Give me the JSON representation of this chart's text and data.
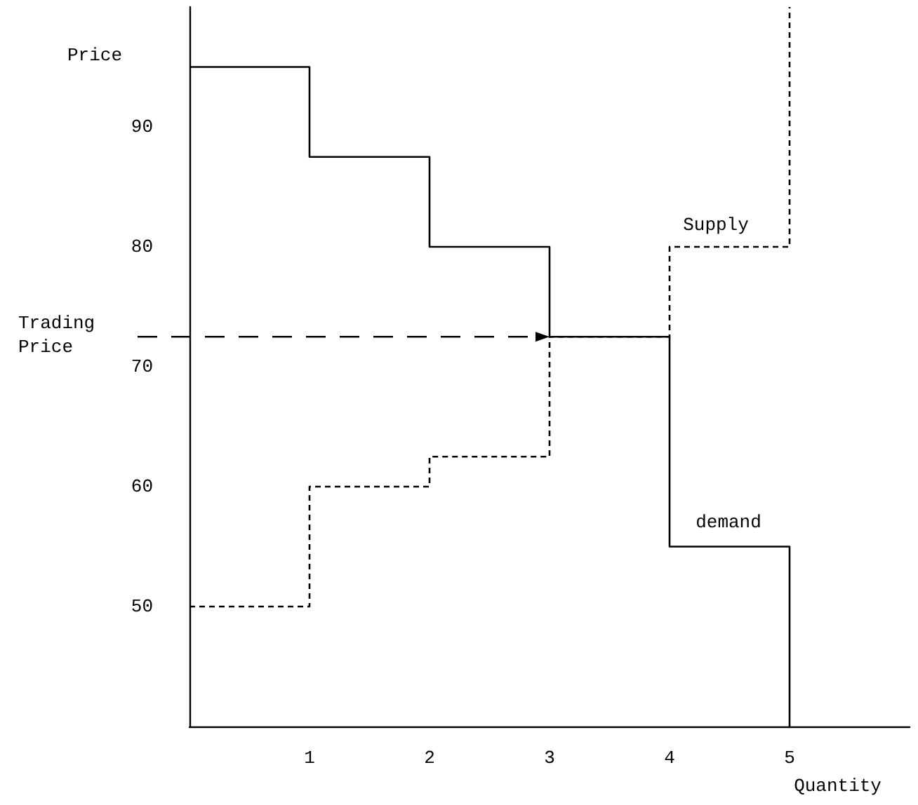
{
  "chart_data": {
    "type": "step",
    "xlabel": "Quantity",
    "ylabel": "Price",
    "xlim": [
      0,
      6
    ],
    "ylim": [
      40,
      100
    ],
    "xticks": [
      1,
      2,
      3,
      4,
      5
    ],
    "yticks": [
      50,
      60,
      70,
      80,
      90
    ],
    "grid": false,
    "marker": "none",
    "series": [
      {
        "name": "demand",
        "color": "#000000",
        "line_style": "solid",
        "x": [
          0,
          1,
          2,
          3,
          4,
          5
        ],
        "values": [
          95,
          87.5,
          80,
          72.5,
          55,
          40
        ]
      },
      {
        "name": "Supply",
        "color": "#000000",
        "line_style": "dotted",
        "x": [
          0,
          1,
          2,
          3,
          4,
          5
        ],
        "values": [
          50,
          60,
          62.5,
          72.5,
          80,
          100
        ]
      }
    ],
    "ref_lines": [
      {
        "axis": "y",
        "value": 72.5,
        "label": "Trading Price",
        "color": "#000000",
        "line_style": "dashed"
      }
    ]
  }
}
